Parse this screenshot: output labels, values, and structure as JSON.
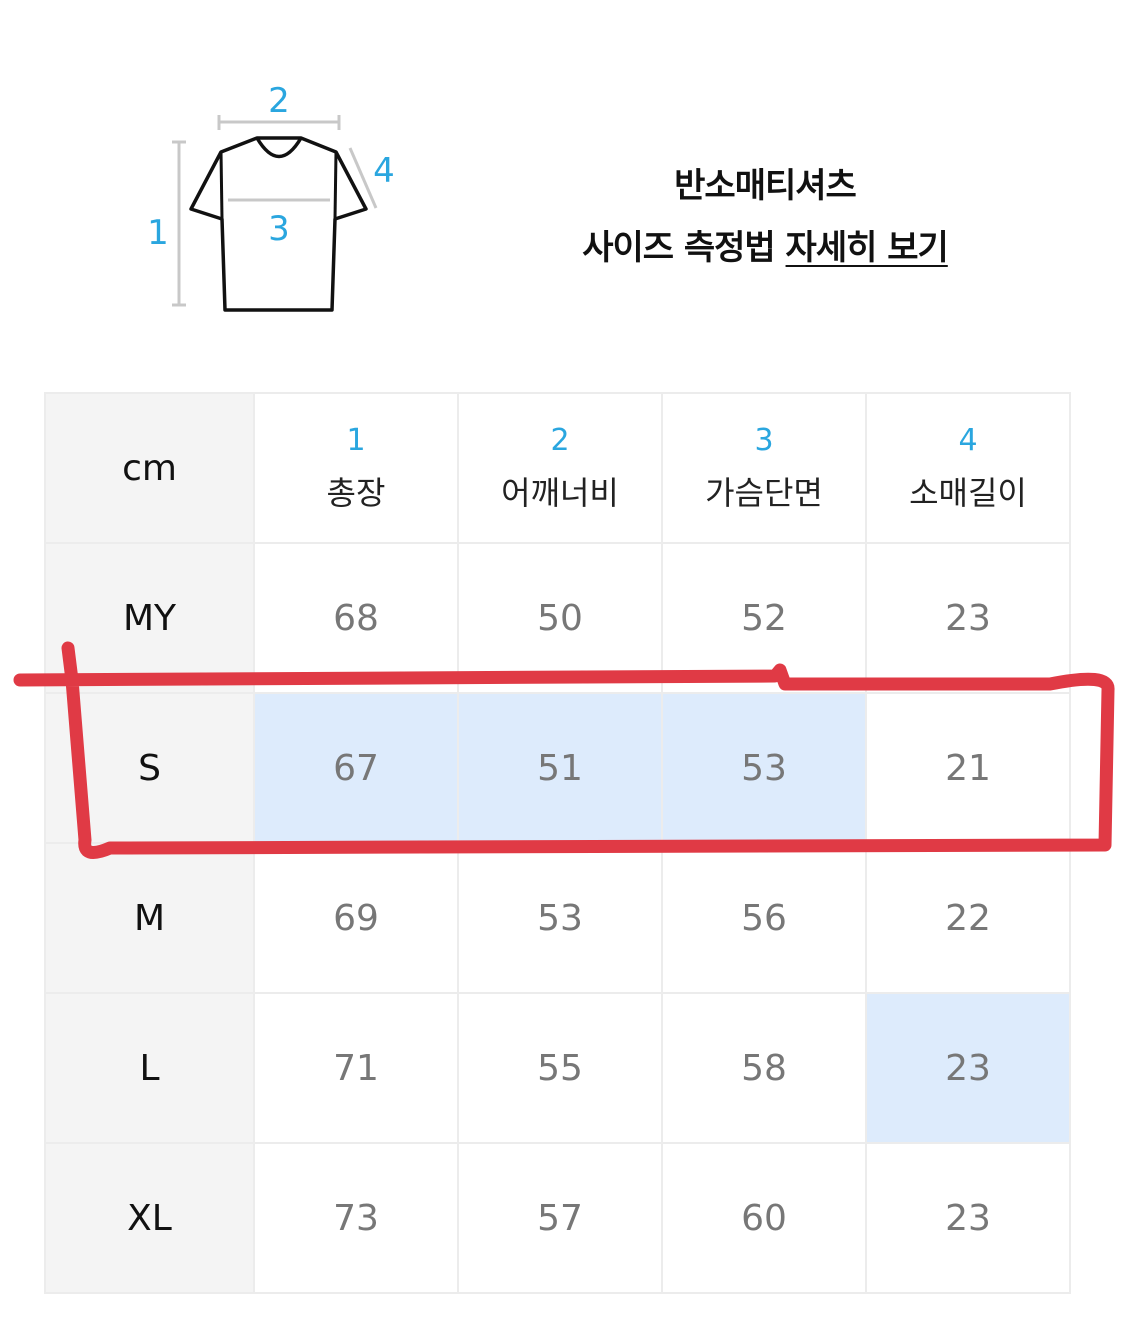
{
  "diagram": {
    "labels": [
      "1",
      "2",
      "3",
      "4"
    ],
    "accent": "#2aa6df"
  },
  "header": {
    "line1": "반소매티셔츠",
    "line2_prefix": "사이즈 측정법 ",
    "line2_link": "자세히 보기"
  },
  "table": {
    "unit": "cm",
    "columns": [
      {
        "num": "1",
        "name": "총장"
      },
      {
        "num": "2",
        "name": "어깨너비"
      },
      {
        "num": "3",
        "name": "가슴단면"
      },
      {
        "num": "4",
        "name": "소매길이"
      }
    ],
    "rows": [
      {
        "size": "MY",
        "values": [
          "68",
          "50",
          "52",
          "23"
        ],
        "highlight": [
          false,
          false,
          false,
          false
        ]
      },
      {
        "size": "S",
        "values": [
          "67",
          "51",
          "53",
          "21"
        ],
        "highlight": [
          true,
          true,
          true,
          false
        ]
      },
      {
        "size": "M",
        "values": [
          "69",
          "53",
          "56",
          "22"
        ],
        "highlight": [
          false,
          false,
          false,
          false
        ]
      },
      {
        "size": "L",
        "values": [
          "71",
          "55",
          "58",
          "23"
        ],
        "highlight": [
          false,
          false,
          false,
          true
        ]
      },
      {
        "size": "XL",
        "values": [
          "73",
          "57",
          "60",
          "23"
        ],
        "highlight": [
          false,
          false,
          false,
          false
        ]
      }
    ],
    "highlight_color": "#ddebfc"
  },
  "annotation": {
    "color": "#e03a45"
  }
}
